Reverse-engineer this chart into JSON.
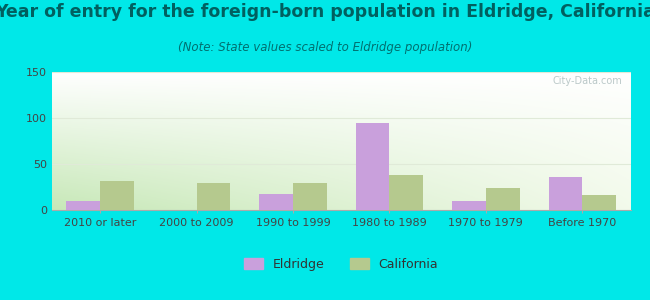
{
  "title": "Year of entry for the foreign-born population in Eldridge, California",
  "subtitle": "(Note: State values scaled to Eldridge population)",
  "categories": [
    "2010 or later",
    "2000 to 2009",
    "1990 to 1999",
    "1980 to 1989",
    "1970 to 1979",
    "Before 1970"
  ],
  "eldridge_values": [
    10,
    0,
    17,
    95,
    10,
    36
  ],
  "california_values": [
    32,
    29,
    29,
    38,
    24,
    16
  ],
  "eldridge_color": "#c9a0dc",
  "california_color": "#b5c98e",
  "bg_outer": "#00e8e8",
  "ylim": [
    0,
    150
  ],
  "yticks": [
    0,
    50,
    100,
    150
  ],
  "bar_width": 0.35,
  "title_fontsize": 12.5,
  "subtitle_fontsize": 8.5,
  "tick_fontsize": 8,
  "legend_fontsize": 9,
  "title_color": "#006060",
  "subtitle_color": "#007070",
  "tick_color": "#444444",
  "grid_color": "#e0ead8",
  "watermark_color": "#b0c0c0"
}
